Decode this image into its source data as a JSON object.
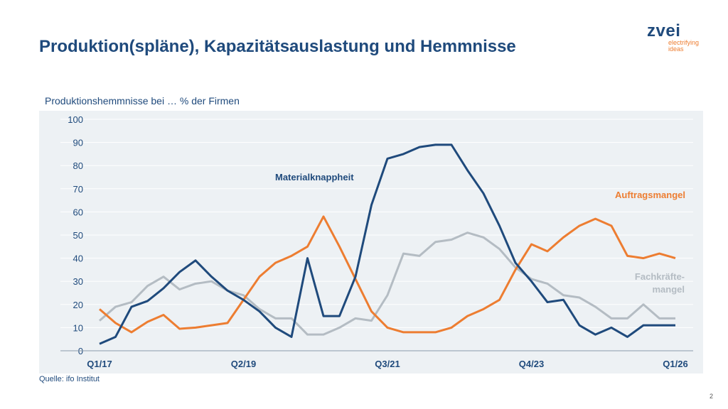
{
  "title": "Produktion(spläne), Kapazitätsauslastung und Hemmnisse",
  "logo": {
    "wordmark": "zvei",
    "tagline": "electrifying ideas"
  },
  "source": "Quelle: ifo Institut",
  "page_number": "2",
  "colors": {
    "Materialknappheit": "#1f4a7c",
    "Auftragsmangel": "#ed7d31",
    "Fachkräftemangel": "#b4bcc3",
    "plot_background": "#edf1f4"
  },
  "chart_data": {
    "type": "line",
    "title": "Produktionshemmnisse bei … % der Firmen",
    "xlabel": "",
    "ylabel": "",
    "x_tick_labels": [
      "Q1/17",
      "Q2/19",
      "Q3/21",
      "Q4/23",
      "Q1/26"
    ],
    "x_start": "Q1/17",
    "x_end": "Q1/26",
    "x_frequency": "quarterly",
    "ylim": [
      0,
      100
    ],
    "y_ticks": [
      0,
      10,
      20,
      30,
      40,
      50,
      60,
      70,
      80,
      90,
      100
    ],
    "grid": "horizontal",
    "legend": "inline labels",
    "series": [
      {
        "name": "Materialknappheit",
        "values": [
          3,
          6,
          19,
          21.5,
          27,
          34,
          39,
          32,
          26,
          22,
          17,
          10,
          6,
          40,
          15,
          15,
          32,
          63,
          83,
          85,
          88,
          89,
          89,
          78,
          68,
          54,
          38,
          30,
          21,
          22,
          11,
          7,
          10,
          6,
          11,
          11,
          11
        ]
      },
      {
        "name": "Auftragsmangel",
        "values": [
          18,
          12,
          8,
          12.5,
          15.5,
          9.5,
          10,
          11,
          12,
          22,
          32,
          38,
          41,
          45,
          58,
          45,
          31,
          17,
          10,
          8,
          8,
          8,
          10,
          15,
          18,
          22,
          35,
          46,
          43,
          49,
          54,
          57,
          54,
          41,
          40,
          42,
          40
        ]
      },
      {
        "name": "Fachkräfte-\nmangel",
        "label_lines": [
          "Fachkräfte-",
          "mangel"
        ],
        "values": [
          13,
          19,
          21,
          28,
          32,
          26.5,
          29,
          30,
          26,
          24,
          18,
          14,
          14,
          7,
          7,
          10,
          14,
          13,
          24,
          42,
          41,
          47,
          48,
          51,
          49,
          44,
          36,
          31,
          29,
          24,
          23,
          19,
          14,
          14,
          20,
          14,
          14
        ]
      }
    ]
  }
}
